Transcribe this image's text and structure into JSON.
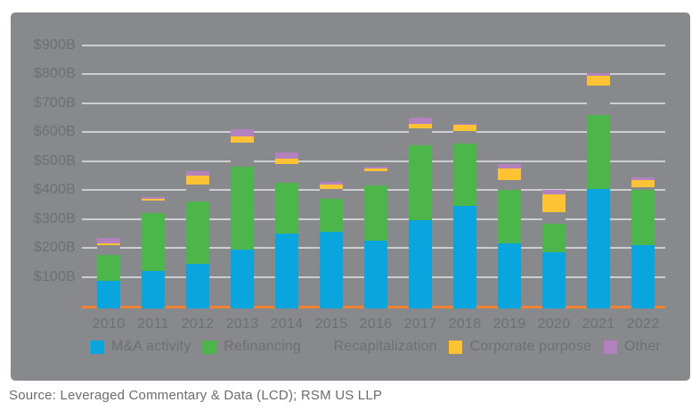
{
  "colors": {
    "page_background": "#FFFFFF",
    "card_background": "#88898C",
    "gridline": "#CDCED1",
    "axis_text": "#6E6F72",
    "baseline_orange": "#F08232",
    "source_text": "#6B6C6F"
  },
  "source": {
    "text": "Source: Leveraged Commentary & Data (LCD); RSM US LLP"
  },
  "legend": {
    "position": "bottom",
    "items": [
      {
        "label": "M&A activity",
        "color": "#09A5DE"
      },
      {
        "label": "Refinancing",
        "color": "#4CB64B"
      },
      {
        "label": "Recapitalization",
        "color": "#88898C"
      },
      {
        "label": "Corporate purpose",
        "color": "#FEC335"
      },
      {
        "label": "Other",
        "color": "#B281BE"
      }
    ]
  },
  "chart_data": {
    "type": "bar",
    "stacked": true,
    "title": "",
    "xlabel": "",
    "ylabel": "",
    "units": "billions USD",
    "grid": true,
    "ylim": [
      0,
      900
    ],
    "yticks": [
      100,
      200,
      300,
      400,
      500,
      600,
      700,
      800,
      900
    ],
    "ytick_labels": [
      "$100B",
      "$200B",
      "$300B",
      "$400B",
      "$500B",
      "$600B",
      "$700B",
      "$800B",
      "$900B"
    ],
    "categories": [
      "2010",
      "2011",
      "2012",
      "2013",
      "2014",
      "2015",
      "2016",
      "2017",
      "2018",
      "2019",
      "2020",
      "2021",
      "2022"
    ],
    "series": [
      {
        "name": "M&A activity",
        "color": "#09A5DE",
        "values": [
          85,
          120,
          145,
          195,
          250,
          255,
          225,
          295,
          345,
          215,
          185,
          405,
          210
        ]
      },
      {
        "name": "Refinancing",
        "color": "#4CB64B",
        "values": [
          90,
          200,
          215,
          285,
          175,
          115,
          190,
          260,
          215,
          185,
          100,
          255,
          190
        ]
      },
      {
        "name": "Recapitalization",
        "color": "#88898C",
        "values": [
          35,
          45,
          60,
          85,
          65,
          35,
          50,
          60,
          45,
          35,
          40,
          100,
          10
        ]
      },
      {
        "name": "Corporate purpose",
        "color": "#FEC335",
        "values": [
          5,
          5,
          30,
          20,
          20,
          15,
          10,
          15,
          20,
          40,
          60,
          35,
          25
        ]
      },
      {
        "name": "Other",
        "color": "#B281BE",
        "values": [
          20,
          5,
          15,
          25,
          20,
          10,
          5,
          20,
          5,
          15,
          15,
          10,
          10
        ]
      }
    ],
    "totals": [
      235,
      375,
      465,
      610,
      530,
      430,
      480,
      650,
      630,
      490,
      400,
      805,
      445
    ]
  }
}
